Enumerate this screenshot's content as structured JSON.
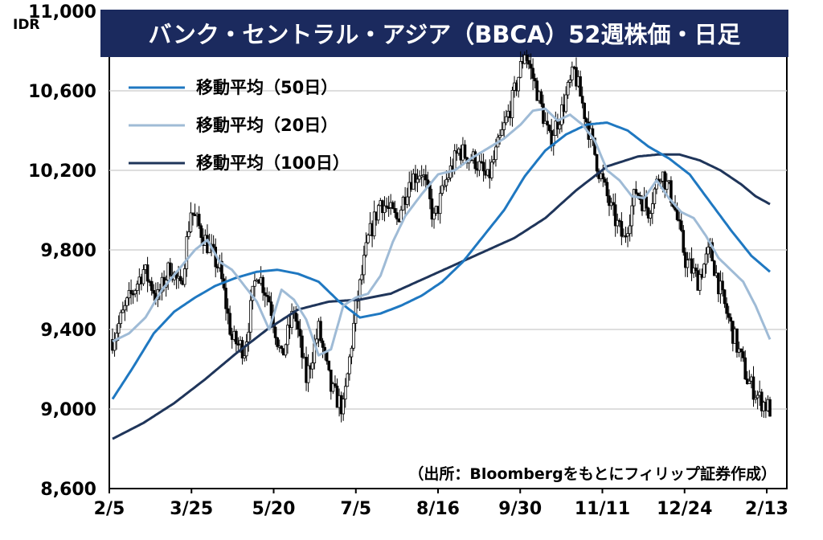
{
  "chart_data": {
    "type": "candlestick",
    "title": "バンク・セントラル・アジア（BBCA）52週株価・日足",
    "unit": "IDR",
    "source": "（出所：Bloombergをもとにフィリップ証券作成）",
    "ylim": [
      8600,
      11000
    ],
    "y_ticks": [
      "11,000",
      "10,600",
      "10,200",
      "9,800",
      "9,400",
      "9,000",
      "8,600"
    ],
    "y_tick_values": [
      11000,
      10600,
      10200,
      9800,
      9400,
      9000,
      8600
    ],
    "x_labels": [
      "2/5",
      "3/25",
      "5/20",
      "7/5",
      "8/16",
      "9/30",
      "11/11",
      "12/24",
      "2/13"
    ],
    "grid": true,
    "legend_position": "top-left",
    "colors": {
      "title_bg": "#1b2a5e",
      "ma50": "#1f78c1",
      "ma20": "#9fbbd6",
      "ma100": "#1f355a",
      "candle": "#000000",
      "grid": "#d4d4d4"
    },
    "legend": [
      "移動平均（50日）",
      "移動平均（20日）",
      "移動平均（100日）"
    ],
    "price_path": [
      [
        0,
        9350
      ],
      [
        8,
        9550
      ],
      [
        15,
        9700
      ],
      [
        22,
        9560
      ],
      [
        28,
        9720
      ],
      [
        33,
        9600
      ],
      [
        38,
        10000
      ],
      [
        45,
        9850
      ],
      [
        52,
        9700
      ],
      [
        58,
        9350
      ],
      [
        64,
        9300
      ],
      [
        70,
        9700
      ],
      [
        76,
        9550
      ],
      [
        82,
        9250
      ],
      [
        88,
        9500
      ],
      [
        94,
        9150
      ],
      [
        100,
        9400
      ],
      [
        106,
        9100
      ],
      [
        112,
        9000
      ],
      [
        118,
        9500
      ],
      [
        124,
        9850
      ],
      [
        130,
        10050
      ],
      [
        138,
        9950
      ],
      [
        144,
        10150
      ],
      [
        150,
        10200
      ],
      [
        156,
        9950
      ],
      [
        162,
        10150
      ],
      [
        168,
        10300
      ],
      [
        176,
        10250
      ],
      [
        182,
        10150
      ],
      [
        188,
        10350
      ],
      [
        194,
        10550
      ],
      [
        200,
        10800
      ],
      [
        206,
        10600
      ],
      [
        212,
        10350
      ],
      [
        218,
        10500
      ],
      [
        224,
        10700
      ],
      [
        230,
        10450
      ],
      [
        236,
        10200
      ],
      [
        242,
        10000
      ],
      [
        248,
        9850
      ],
      [
        254,
        10100
      ],
      [
        260,
        10000
      ],
      [
        266,
        10200
      ],
      [
        272,
        10050
      ],
      [
        278,
        9750
      ],
      [
        284,
        9650
      ],
      [
        290,
        9800
      ],
      [
        296,
        9550
      ],
      [
        302,
        9350
      ],
      [
        308,
        9150
      ],
      [
        314,
        9050
      ],
      [
        319,
        9000
      ]
    ],
    "series": [
      {
        "name": "移動平均（50日）",
        "x": [
          0,
          10,
          20,
          30,
          40,
          50,
          60,
          70,
          80,
          90,
          100,
          110,
          120,
          130,
          140,
          150,
          160,
          170,
          180,
          190,
          200,
          210,
          220,
          230,
          240,
          250,
          260,
          270,
          280,
          290,
          300,
          310,
          319
        ],
        "values": [
          9050,
          9210,
          9380,
          9490,
          9560,
          9620,
          9660,
          9690,
          9700,
          9680,
          9640,
          9540,
          9460,
          9480,
          9520,
          9570,
          9640,
          9740,
          9870,
          10000,
          10170,
          10300,
          10380,
          10430,
          10440,
          10400,
          10320,
          10260,
          10180,
          10040,
          9900,
          9770,
          9690
        ]
      },
      {
        "name": "移動平均（20日）",
        "x": [
          0,
          8,
          16,
          24,
          32,
          40,
          46,
          52,
          58,
          64,
          70,
          76,
          82,
          88,
          94,
          100,
          106,
          112,
          118,
          124,
          130,
          136,
          142,
          150,
          158,
          166,
          174,
          182,
          190,
          198,
          204,
          210,
          216,
          222,
          228,
          234,
          240,
          246,
          252,
          258,
          264,
          270,
          276,
          282,
          288,
          294,
          300,
          306,
          312,
          319
        ],
        "values": [
          9340,
          9380,
          9460,
          9600,
          9700,
          9800,
          9850,
          9740,
          9700,
          9620,
          9540,
          9400,
          9600,
          9550,
          9450,
          9270,
          9300,
          9520,
          9560,
          9580,
          9670,
          9840,
          9970,
          10080,
          10180,
          10200,
          10260,
          10310,
          10360,
          10430,
          10500,
          10510,
          10450,
          10480,
          10430,
          10350,
          10200,
          10150,
          10070,
          10060,
          10150,
          10060,
          9990,
          9960,
          9870,
          9760,
          9700,
          9640,
          9520,
          9350
        ]
      },
      {
        "name": "移動平均（100日）",
        "x": [
          0,
          15,
          30,
          45,
          60,
          75,
          90,
          105,
          120,
          135,
          150,
          165,
          180,
          195,
          210,
          225,
          240,
          255,
          265,
          275,
          285,
          295,
          305,
          312,
          319
        ],
        "values": [
          8850,
          8930,
          9030,
          9150,
          9280,
          9400,
          9500,
          9540,
          9550,
          9580,
          9650,
          9720,
          9790,
          9860,
          9960,
          10100,
          10220,
          10270,
          10280,
          10280,
          10250,
          10200,
          10130,
          10070,
          10030
        ]
      }
    ]
  }
}
